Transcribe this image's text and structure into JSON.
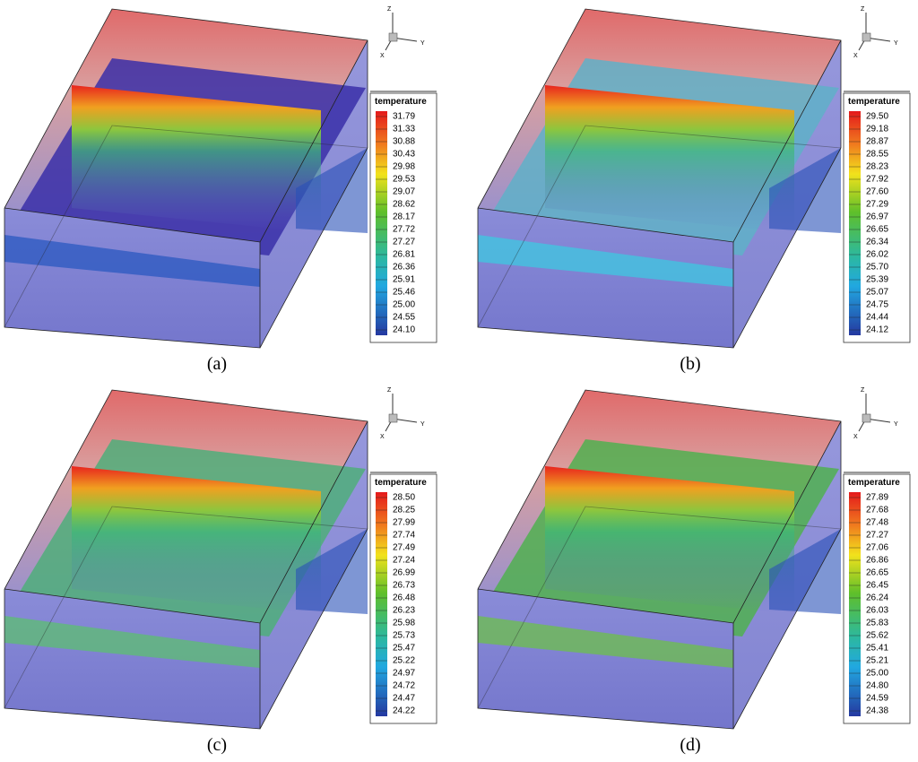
{
  "axes": {
    "z": "Z",
    "y": "Y",
    "x": "X"
  },
  "panels": [
    {
      "label": "(a)",
      "legend_title": "temperature",
      "ticks": [
        "31.79",
        "31.33",
        "30.88",
        "30.43",
        "29.98",
        "29.53",
        "29.07",
        "28.62",
        "28.17",
        "27.72",
        "27.27",
        "26.81",
        "26.36",
        "25.91",
        "25.46",
        "25.00",
        "24.55",
        "24.10"
      ]
    },
    {
      "label": "(b)",
      "legend_title": "temperature",
      "ticks": [
        "29.50",
        "29.18",
        "28.87",
        "28.55",
        "28.23",
        "27.92",
        "27.60",
        "27.29",
        "26.97",
        "26.65",
        "26.34",
        "26.02",
        "25.70",
        "25.39",
        "25.07",
        "24.75",
        "24.44",
        "24.12"
      ]
    },
    {
      "label": "(c)",
      "legend_title": "temperature",
      "ticks": [
        "28.50",
        "28.25",
        "27.99",
        "27.74",
        "27.49",
        "27.24",
        "26.99",
        "26.73",
        "26.48",
        "26.23",
        "25.98",
        "25.73",
        "25.47",
        "25.22",
        "24.97",
        "24.72",
        "24.47",
        "24.22"
      ]
    },
    {
      "label": "(d)",
      "legend_title": "temperature",
      "ticks": [
        "27.89",
        "27.68",
        "27.48",
        "27.27",
        "27.06",
        "26.86",
        "26.65",
        "26.45",
        "26.24",
        "26.03",
        "25.83",
        "25.62",
        "25.41",
        "25.21",
        "25.00",
        "24.80",
        "24.59",
        "24.38"
      ]
    }
  ]
}
